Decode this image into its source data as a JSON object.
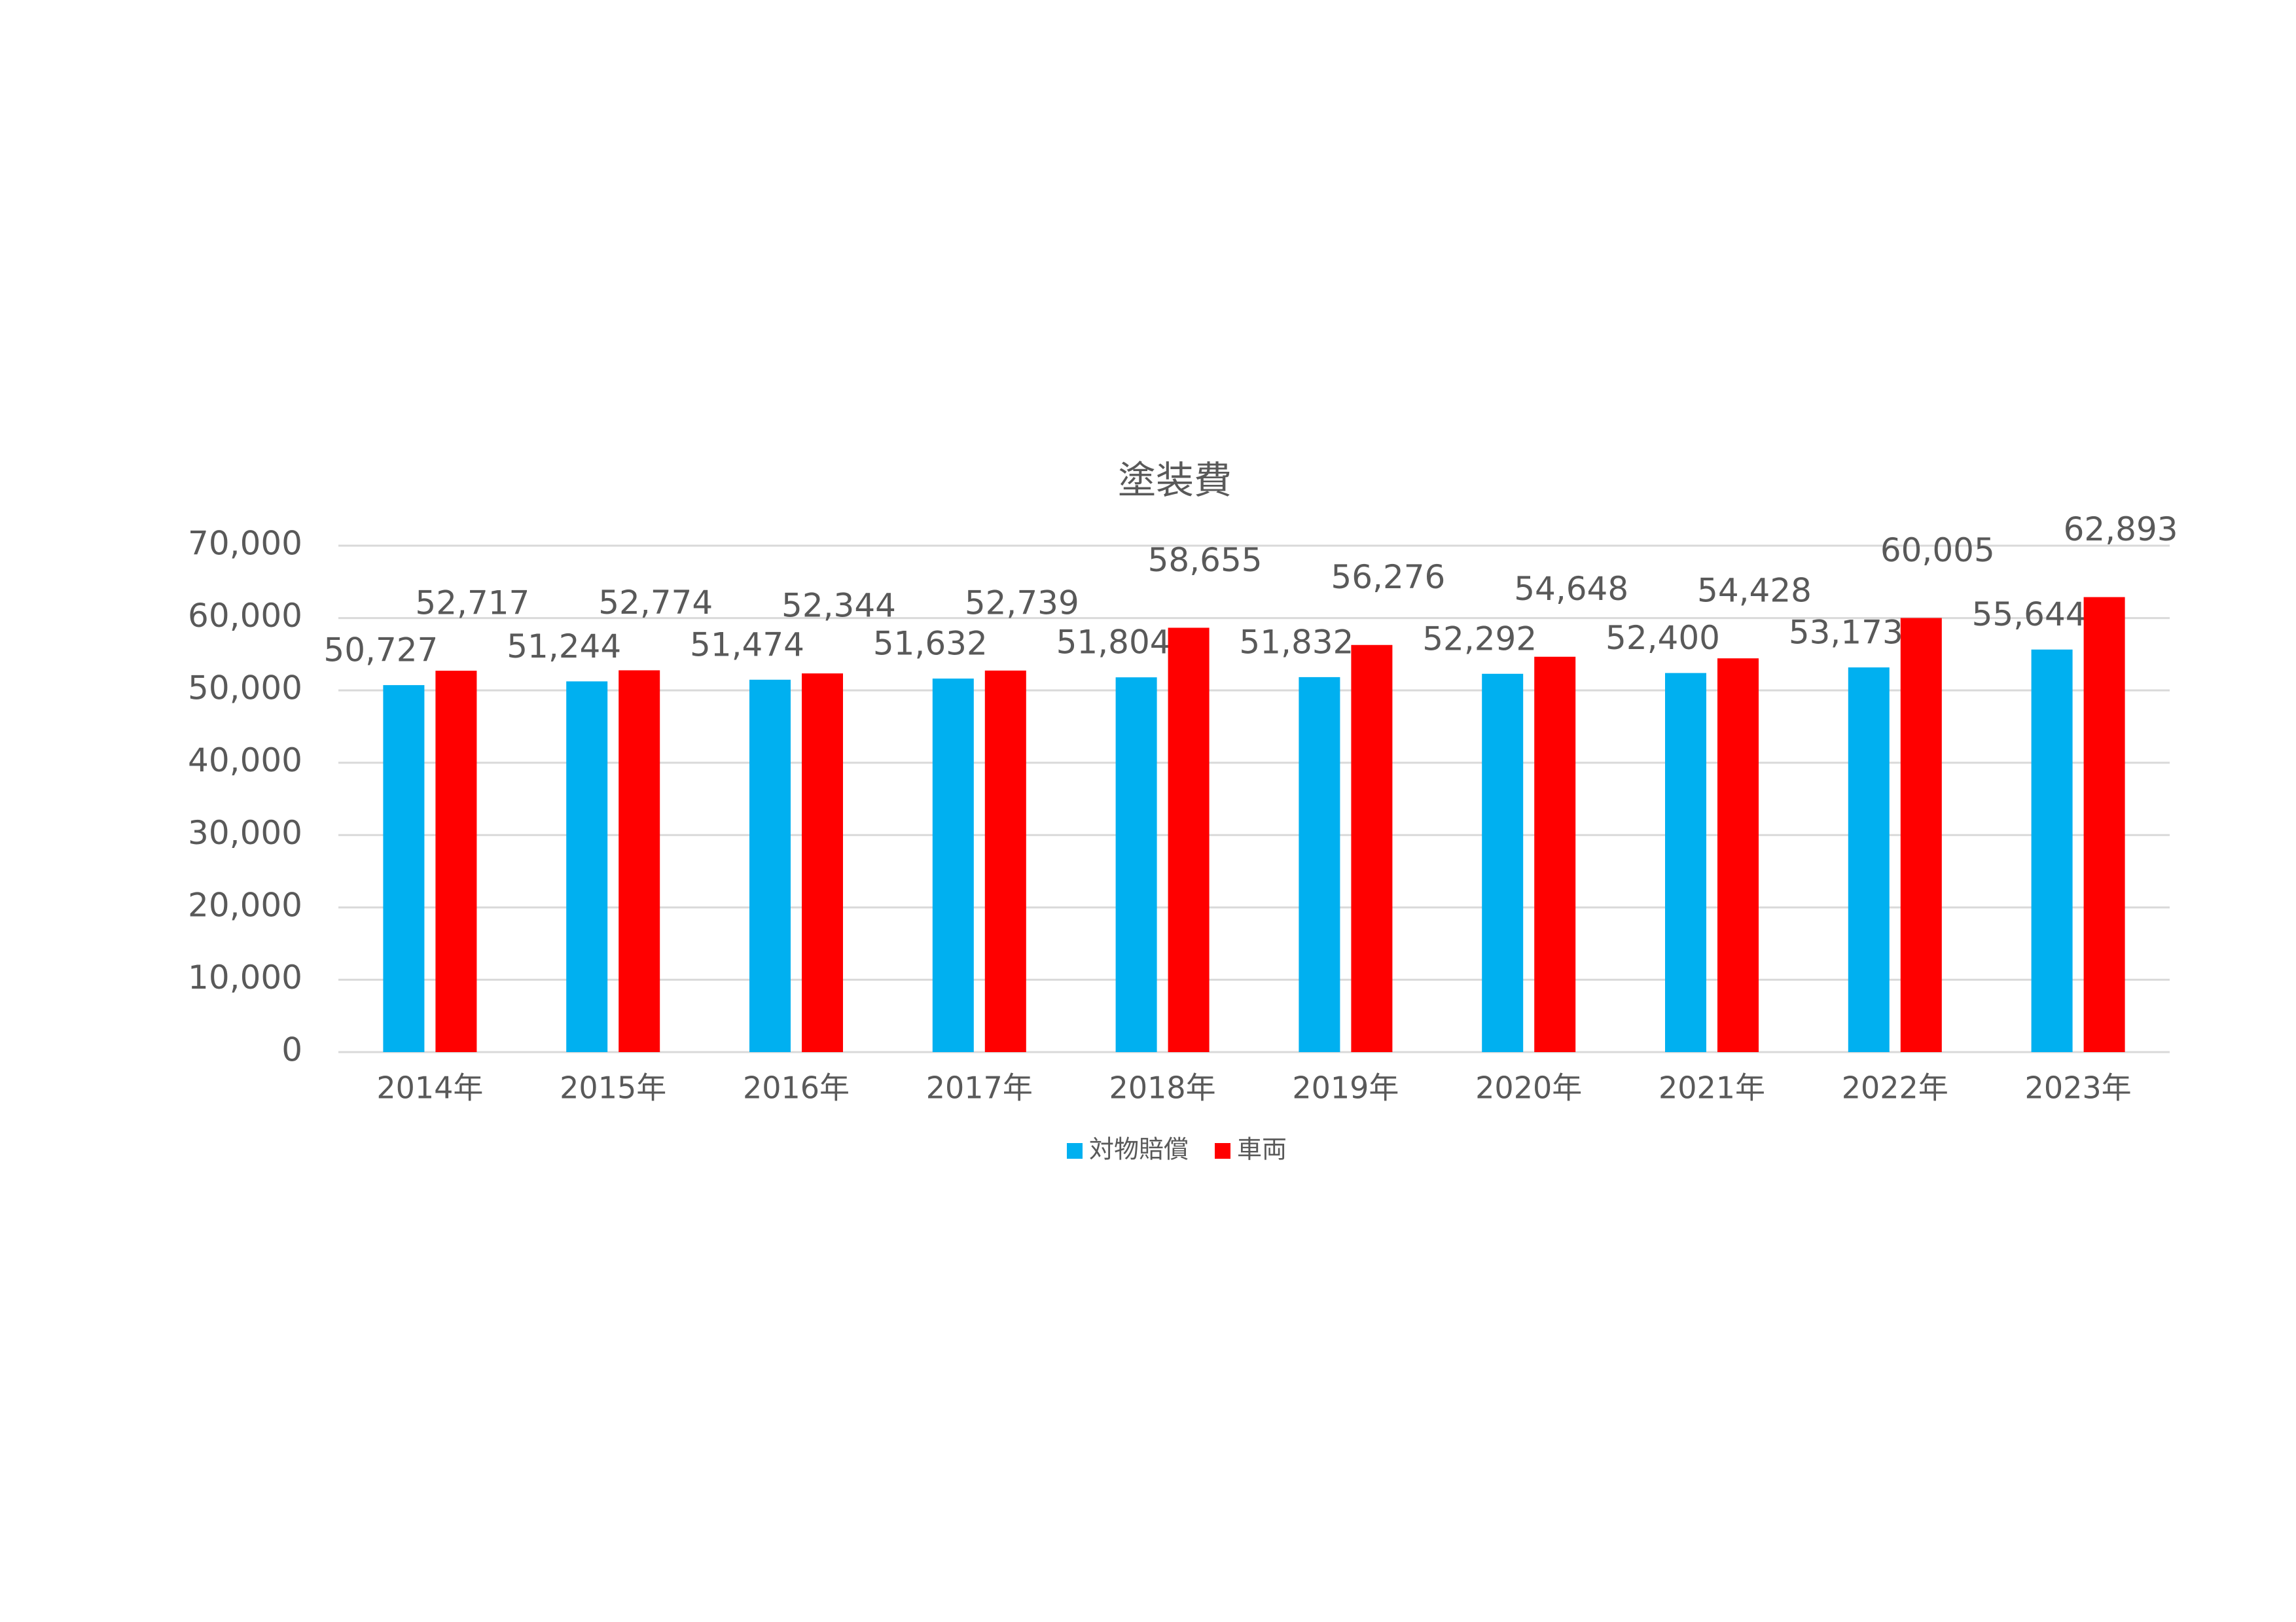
{
  "chart_data": {
    "type": "bar",
    "title": "塗装費",
    "categories": [
      "2014年",
      "2015年",
      "2016年",
      "2017年",
      "2018年",
      "2019年",
      "2020年",
      "2021年",
      "2022年",
      "2023年"
    ],
    "series": [
      {
        "name": "対物賠償",
        "color": "#00b0f0",
        "values": [
          50727,
          51244,
          51474,
          51632,
          51804,
          51832,
          52292,
          52400,
          53173,
          55644
        ],
        "value_labels": [
          "50,727",
          "51,244",
          "51,474",
          "51,632",
          "51,804",
          "51,832",
          "52,292",
          "52,400",
          "53,173",
          "55,644"
        ]
      },
      {
        "name": "車両",
        "color": "#ff0000",
        "values": [
          52717,
          52774,
          52344,
          52739,
          58655,
          56276,
          54648,
          54428,
          60005,
          62893
        ],
        "value_labels": [
          "52,717",
          "52,774",
          "52,344",
          "52,739",
          "58,655",
          "56,276",
          "54,648",
          "54,428",
          "60,005",
          "62,893"
        ]
      }
    ],
    "ylim": [
      0,
      70000
    ],
    "yticks": [
      0,
      {
        "value": 10000,
        "label": "10,000"
      },
      {
        "value": 20000,
        "label": "20,000"
      },
      {
        "value": 30000,
        "label": "30,000"
      },
      {
        "value": 40000,
        "label": "40,000"
      },
      {
        "value": 50000,
        "label": "50,000"
      },
      {
        "value": 60000,
        "label": "60,000"
      },
      {
        "value": 70000,
        "label": "70,000"
      }
    ],
    "grid": true,
    "legend": "bottom"
  }
}
